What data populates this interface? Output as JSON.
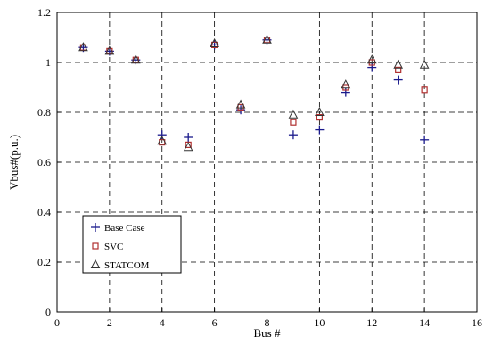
{
  "chart_data": {
    "type": "scatter",
    "xlabel": "Bus #",
    "ylabel": "Vbus#(p.u.)",
    "xlim": [
      0,
      16
    ],
    "ylim": [
      0,
      1.2
    ],
    "x_ticks": [
      "0",
      "2",
      "4",
      "6",
      "8",
      "10",
      "12",
      "14",
      "16"
    ],
    "y_ticks": [
      "0",
      "0.2",
      "0.4",
      "0.6",
      "0.8",
      "1",
      "1.2"
    ],
    "grid": "dashed",
    "legend_position": "bottom-left",
    "series": [
      {
        "name": "Base Case",
        "marker": "plus",
        "color": "#1a1a8c",
        "points": [
          {
            "x": 1,
            "y": 1.06
          },
          {
            "x": 2,
            "y": 1.045
          },
          {
            "x": 3,
            "y": 1.01
          },
          {
            "x": 4,
            "y": 0.71
          },
          {
            "x": 5,
            "y": 0.7
          },
          {
            "x": 6,
            "y": 1.07
          },
          {
            "x": 7,
            "y": 0.81
          },
          {
            "x": 8,
            "y": 1.09
          },
          {
            "x": 9,
            "y": 0.71
          },
          {
            "x": 10,
            "y": 0.73
          },
          {
            "x": 11,
            "y": 0.88
          },
          {
            "x": 12,
            "y": 0.98
          },
          {
            "x": 13,
            "y": 0.93
          },
          {
            "x": 14,
            "y": 0.69
          }
        ]
      },
      {
        "name": "SVC",
        "marker": "square",
        "color": "#b03030",
        "points": [
          {
            "x": 1,
            "y": 1.06
          },
          {
            "x": 2,
            "y": 1.045
          },
          {
            "x": 3,
            "y": 1.01
          },
          {
            "x": 4,
            "y": 0.68
          },
          {
            "x": 5,
            "y": 0.67
          },
          {
            "x": 6,
            "y": 1.07
          },
          {
            "x": 7,
            "y": 0.82
          },
          {
            "x": 8,
            "y": 1.09
          },
          {
            "x": 9,
            "y": 0.76
          },
          {
            "x": 10,
            "y": 0.78
          },
          {
            "x": 11,
            "y": 0.9
          },
          {
            "x": 12,
            "y": 1.0
          },
          {
            "x": 13,
            "y": 0.97
          },
          {
            "x": 14,
            "y": 0.89
          }
        ]
      },
      {
        "name": "STATCOM",
        "marker": "triangle",
        "color": "#333333",
        "points": [
          {
            "x": 1,
            "y": 1.06
          },
          {
            "x": 2,
            "y": 1.045
          },
          {
            "x": 3,
            "y": 1.01
          },
          {
            "x": 4,
            "y": 0.685
          },
          {
            "x": 5,
            "y": 0.66
          },
          {
            "x": 6,
            "y": 1.075
          },
          {
            "x": 7,
            "y": 0.83
          },
          {
            "x": 8,
            "y": 1.09
          },
          {
            "x": 9,
            "y": 0.79
          },
          {
            "x": 10,
            "y": 0.8
          },
          {
            "x": 11,
            "y": 0.91
          },
          {
            "x": 12,
            "y": 1.01
          },
          {
            "x": 13,
            "y": 0.99
          },
          {
            "x": 14,
            "y": 0.99
          }
        ]
      }
    ]
  }
}
